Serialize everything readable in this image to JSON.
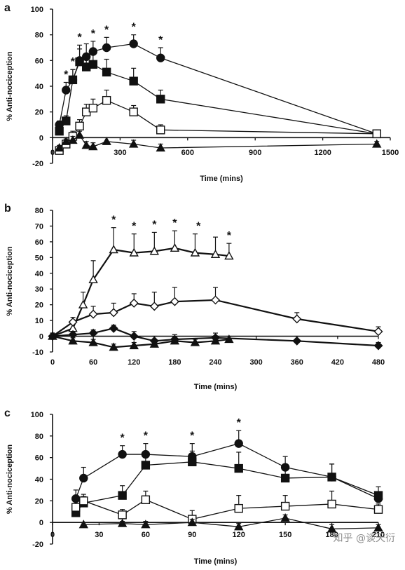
{
  "watermark": "知乎 @谈天衍",
  "chart_data": [
    {
      "panel": "a",
      "type": "line",
      "xlabel": "Time (mins)",
      "ylabel": "% Anti-nociception",
      "xlim": [
        0,
        1500
      ],
      "ylim": [
        -20,
        100
      ],
      "xticks": [
        0,
        300,
        600,
        900,
        1200,
        1500
      ],
      "yticks": [
        -20,
        0,
        20,
        40,
        60,
        80,
        100
      ],
      "series": [
        {
          "marker": "circle-filled",
          "x": [
            30,
            60,
            90,
            120,
            150,
            180,
            240,
            360,
            480,
            1440
          ],
          "y": [
            10,
            37,
            45,
            60,
            63,
            67,
            70,
            73,
            62,
            3
          ],
          "err": [
            3,
            6,
            8,
            12,
            10,
            8,
            8,
            7,
            8,
            2
          ]
        },
        {
          "marker": "square-filled",
          "x": [
            30,
            60,
            90,
            120,
            150,
            180,
            240,
            360,
            480,
            1440
          ],
          "y": [
            5,
            13,
            45,
            59,
            55,
            57,
            51,
            44,
            30,
            3
          ],
          "err": [
            3,
            4,
            8,
            10,
            8,
            8,
            10,
            10,
            7,
            2
          ]
        },
        {
          "marker": "square-open",
          "x": [
            30,
            60,
            90,
            120,
            150,
            180,
            240,
            360,
            480,
            1440
          ],
          "y": [
            -10,
            -5,
            1,
            9,
            20,
            23,
            29,
            20,
            6,
            3
          ],
          "err": [
            3,
            3,
            4,
            5,
            6,
            7,
            8,
            5,
            4,
            2
          ]
        },
        {
          "marker": "triangle-filled",
          "x": [
            30,
            60,
            90,
            120,
            150,
            180,
            240,
            360,
            480,
            1440
          ],
          "y": [
            -8,
            -3,
            -2,
            2,
            -6,
            -7,
            -3,
            -5,
            -8,
            -5
          ],
          "err": [
            2,
            2,
            3,
            3,
            3,
            3,
            3,
            3,
            3,
            2
          ]
        }
      ],
      "stars": [
        {
          "x": 60,
          "text": "*"
        },
        {
          "x": 90,
          "text": "*"
        },
        {
          "x": 120,
          "text": "*"
        },
        {
          "x": 180,
          "text": "*"
        },
        {
          "x": 240,
          "text": "*"
        },
        {
          "x": 360,
          "text": "*"
        },
        {
          "x": 480,
          "text": "*"
        }
      ]
    },
    {
      "panel": "b",
      "type": "line",
      "xlabel": "Time (mins)",
      "ylabel": "% Anti-nociception",
      "xlim": [
        0,
        480
      ],
      "ylim": [
        -10,
        80
      ],
      "xticks": [
        0,
        60,
        120,
        180,
        240,
        300,
        360,
        420,
        480
      ],
      "yticks": [
        -10,
        0,
        10,
        20,
        30,
        40,
        50,
        60,
        70,
        80
      ],
      "series": [
        {
          "marker": "triangle-open",
          "x": [
            0,
            30,
            45,
            60,
            90,
            120,
            150,
            180,
            210,
            240,
            260
          ],
          "y": [
            0,
            5,
            20,
            36,
            55,
            53,
            54,
            56,
            53,
            52,
            51
          ],
          "err": [
            2,
            3,
            8,
            12,
            14,
            12,
            12,
            11,
            12,
            11,
            8
          ]
        },
        {
          "marker": "diamond-open",
          "x": [
            0,
            30,
            60,
            90,
            120,
            150,
            180,
            240,
            360,
            480
          ],
          "y": [
            0,
            9,
            14,
            15,
            21,
            19,
            22,
            23,
            11,
            3
          ],
          "err": [
            2,
            3,
            5,
            6,
            6,
            9,
            9,
            8,
            4,
            3
          ]
        },
        {
          "marker": "diamond-filled",
          "x": [
            0,
            30,
            60,
            90,
            120,
            150,
            180,
            240,
            360,
            480
          ],
          "y": [
            0,
            1,
            2,
            5,
            0,
            -3,
            -2,
            -1,
            -3,
            -6
          ],
          "err": [
            2,
            2,
            2,
            2,
            3,
            3,
            3,
            3,
            3,
            2
          ]
        },
        {
          "marker": "triangle-filled",
          "x": [
            0,
            30,
            60,
            90,
            120,
            150,
            180,
            210,
            240,
            260
          ],
          "y": [
            0,
            -3,
            -4,
            -7,
            -6,
            -5,
            -3,
            -4,
            -3,
            -2
          ],
          "err": [
            2,
            2,
            2,
            2,
            2,
            2,
            2,
            2,
            2,
            2
          ]
        }
      ],
      "stars": [
        {
          "x": 90,
          "text": "*"
        },
        {
          "x": 120,
          "text": "*"
        },
        {
          "x": 150,
          "text": "*"
        },
        {
          "x": 180,
          "text": "*"
        },
        {
          "x": 215,
          "text": "*"
        },
        {
          "x": 260,
          "text": "*"
        }
      ]
    },
    {
      "panel": "c",
      "type": "line",
      "xlabel": "Time (mins)",
      "ylabel": "% Anti-nociception",
      "xlim": [
        0,
        210
      ],
      "ylim": [
        -20,
        100
      ],
      "xticks": [
        0,
        30,
        60,
        90,
        120,
        150,
        180,
        210
      ],
      "yticks": [
        -20,
        0,
        20,
        40,
        60,
        80,
        100
      ],
      "series": [
        {
          "marker": "circle-filled",
          "x": [
            15,
            20,
            45,
            60,
            90,
            120,
            150,
            180,
            210
          ],
          "y": [
            22,
            41,
            63,
            63,
            61,
            73,
            51,
            42,
            22
          ],
          "err": [
            8,
            10,
            8,
            10,
            12,
            12,
            10,
            12,
            6
          ]
        },
        {
          "marker": "square-filled",
          "x": [
            15,
            20,
            45,
            60,
            90,
            120,
            150,
            180,
            210
          ],
          "y": [
            9,
            18,
            25,
            53,
            56,
            50,
            41,
            42,
            25
          ],
          "err": [
            5,
            6,
            9,
            12,
            10,
            15,
            10,
            12,
            8
          ]
        },
        {
          "marker": "square-open",
          "x": [
            15,
            20,
            45,
            60,
            90,
            120,
            150,
            180,
            210
          ],
          "y": [
            14,
            20,
            7,
            21,
            3,
            13,
            15,
            17,
            12
          ],
          "err": [
            6,
            6,
            5,
            8,
            8,
            12,
            10,
            12,
            5
          ]
        },
        {
          "marker": "triangle-filled",
          "x": [
            20,
            45,
            60,
            90,
            120,
            150,
            180,
            210
          ],
          "y": [
            -2,
            -1,
            -2,
            0,
            -4,
            4,
            -6,
            -5
          ],
          "err": [
            2,
            2,
            3,
            3,
            3,
            3,
            4,
            3
          ]
        }
      ],
      "stars": [
        {
          "x": 45,
          "text": "*"
        },
        {
          "x": 60,
          "text": "*"
        },
        {
          "x": 90,
          "text": "*"
        },
        {
          "x": 120,
          "text": "*"
        }
      ]
    }
  ]
}
